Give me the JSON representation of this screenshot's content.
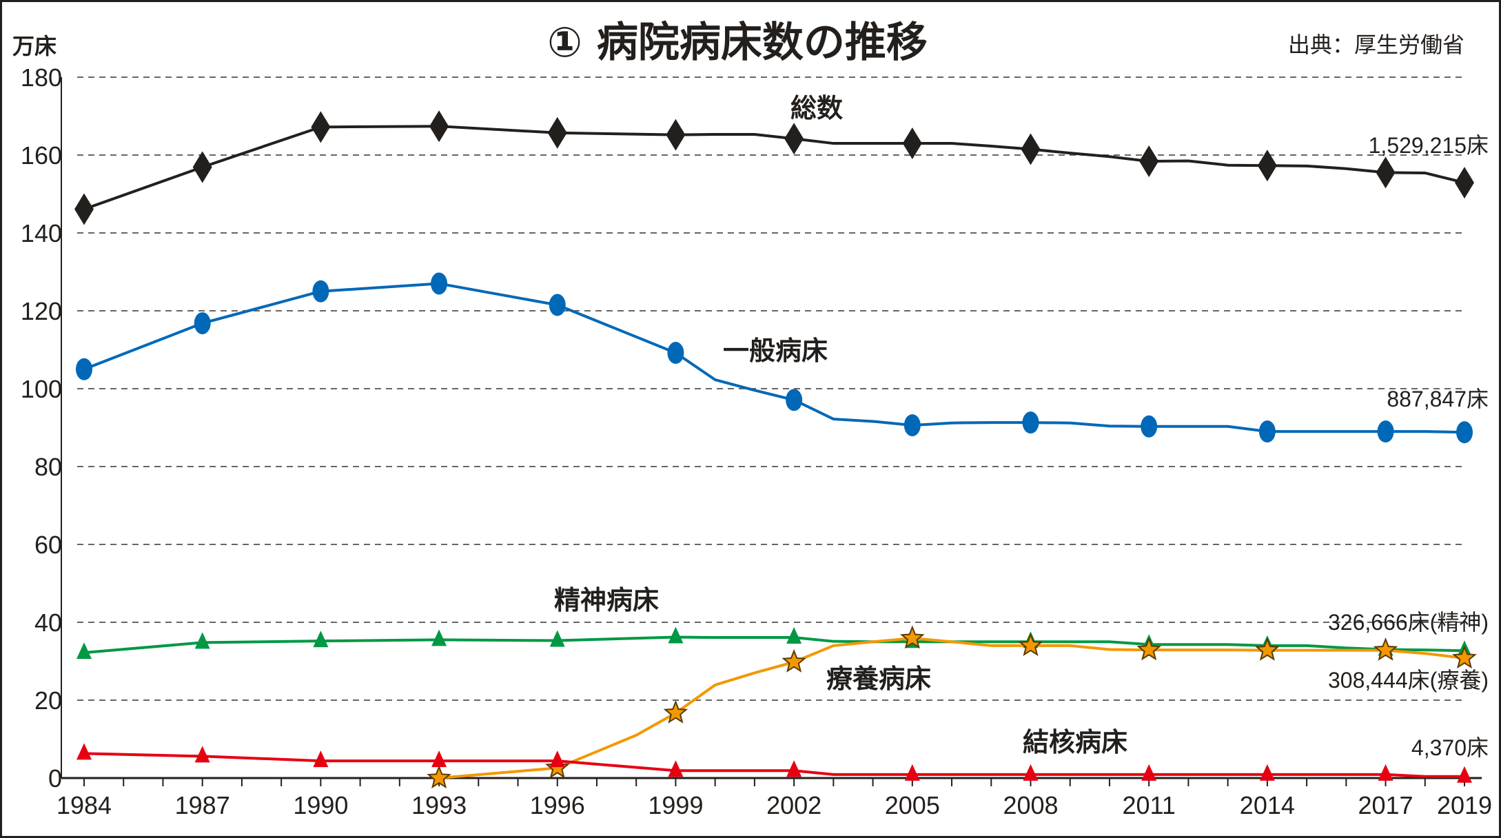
{
  "chart_data": {
    "type": "line",
    "title": "① 病院病床数の推移",
    "source": "出典：厚生労働省",
    "ylabel": "万床",
    "xlabel": "",
    "ylim": [
      0,
      180
    ],
    "xlim": [
      1984,
      2019
    ],
    "yticks": [
      "0",
      "20",
      "40",
      "60",
      "80",
      "100",
      "120",
      "140",
      "160",
      "180"
    ],
    "xticks": [
      "1984",
      "1987",
      "1990",
      "1993",
      "1996",
      "1999",
      "2002",
      "2005",
      "2008",
      "2011",
      "2014",
      "2017",
      "2019"
    ],
    "grid": "horizontal dashed",
    "marker_years": [
      1984,
      1987,
      1990,
      1993,
      1996,
      1999,
      2002,
      2005,
      2008,
      2011,
      2014,
      2017,
      2019
    ],
    "series": [
      {
        "name": "総数",
        "color": "#231f1c",
        "marker": "diamond",
        "end_label": "1,529,215床",
        "x": [
          1984,
          1987,
          1990,
          1993,
          1996,
          1999,
          2000,
          2001,
          2002,
          2003,
          2004,
          2005,
          2006,
          2007,
          2008,
          2009,
          2010,
          2011,
          2012,
          2013,
          2014,
          2015,
          2016,
          2017,
          2018,
          2019
        ],
        "y": [
          146.1,
          156.9,
          167.2,
          167.4,
          165.7,
          165.2,
          165.3,
          165.3,
          164.2,
          163.0,
          163.0,
          163.0,
          163.0,
          162.3,
          161.5,
          160.5,
          159.6,
          158.4,
          158.5,
          157.4,
          157.3,
          157.2,
          156.5,
          155.5,
          155.4,
          152.9
        ]
      },
      {
        "name": "一般病床",
        "color": "#0068b7",
        "marker": "circle",
        "end_label": "887,847床",
        "x": [
          1984,
          1987,
          1990,
          1993,
          1996,
          1999,
          2000,
          2001,
          2002,
          2003,
          2004,
          2005,
          2006,
          2007,
          2008,
          2009,
          2010,
          2011,
          2012,
          2013,
          2014,
          2015,
          2016,
          2017,
          2018,
          2019
        ],
        "y": [
          105.0,
          116.8,
          125.0,
          127.0,
          121.5,
          109.2,
          102.3,
          99.6,
          97.1,
          92.2,
          91.6,
          90.6,
          91.2,
          91.3,
          91.3,
          91.2,
          90.4,
          90.3,
          90.3,
          90.3,
          89.0,
          89.0,
          89.0,
          89.0,
          89.0,
          88.8
        ]
      },
      {
        "name": "精神病床",
        "color": "#009844",
        "marker": "triangle",
        "end_label": "326,666床(精神)",
        "x": [
          1984,
          1987,
          1990,
          1993,
          1996,
          1999,
          2000,
          2001,
          2002,
          2003,
          2004,
          2005,
          2006,
          2007,
          2008,
          2009,
          2010,
          2011,
          2012,
          2013,
          2014,
          2015,
          2016,
          2017,
          2018,
          2019
        ],
        "y": [
          32.2,
          34.8,
          35.2,
          35.5,
          35.3,
          36.2,
          36.1,
          36.1,
          36.1,
          35.1,
          35.0,
          35.0,
          35.0,
          35.0,
          35.0,
          35.0,
          35.0,
          34.3,
          34.3,
          34.3,
          34.0,
          34.0,
          33.4,
          33.0,
          32.9,
          32.7
        ]
      },
      {
        "name": "療養病床",
        "color": "#f39800",
        "marker": "star",
        "end_label": "308,444床(療養)",
        "x": [
          1993,
          1996,
          1998,
          1999,
          2000,
          2001,
          2002,
          2003,
          2004,
          2005,
          2006,
          2007,
          2008,
          2009,
          2010,
          2011,
          2012,
          2013,
          2014,
          2015,
          2016,
          2017,
          2018,
          2019
        ],
        "y": [
          0,
          2.6,
          11.0,
          16.7,
          23.9,
          27.0,
          29.8,
          34.0,
          35.0,
          35.9,
          35.0,
          34.0,
          34.0,
          34.0,
          33.0,
          32.9,
          32.9,
          32.9,
          32.8,
          32.8,
          32.8,
          32.8,
          32.0,
          30.8
        ]
      },
      {
        "name": "結核病床",
        "color": "#e60012",
        "marker": "triangle",
        "end_label": "4,370床",
        "x": [
          1984,
          1987,
          1990,
          1993,
          1996,
          1999,
          2000,
          2001,
          2002,
          2003,
          2004,
          2005,
          2006,
          2007,
          2008,
          2009,
          2010,
          2011,
          2012,
          2013,
          2014,
          2015,
          2016,
          2017,
          2018,
          2019
        ],
        "y": [
          6.3,
          5.6,
          4.4,
          4.4,
          4.4,
          1.9,
          1.9,
          1.9,
          1.9,
          0.9,
          0.9,
          0.9,
          0.9,
          0.9,
          0.9,
          0.9,
          0.9,
          0.9,
          0.9,
          0.9,
          0.9,
          0.9,
          0.9,
          0.9,
          0.4,
          0.4
        ]
      }
    ]
  }
}
